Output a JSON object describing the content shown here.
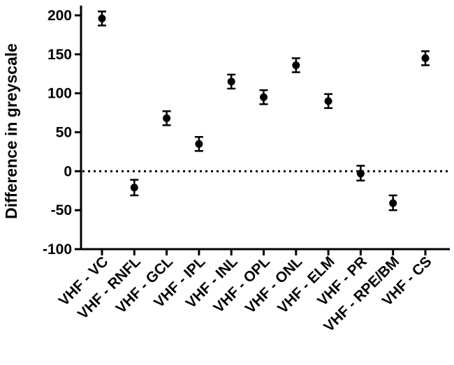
{
  "chart_data": {
    "type": "scatter",
    "title": "",
    "xlabel": "",
    "ylabel": "Difference in greyscale",
    "ylim": [
      -100,
      220
    ],
    "yticks": [
      200,
      150,
      100,
      50,
      0,
      -50,
      -100
    ],
    "reference_line": {
      "y": 0,
      "style": "dotted"
    },
    "grid": false,
    "legend": "none",
    "categories": [
      "VHF - VC",
      "VHF - RNFL",
      "VHF - GCL",
      "VHF - IPL",
      "VHF - INL",
      "VHF - OPL",
      "VHF - ONL",
      "VHF - ELM",
      "VHF - PR",
      "VHF - RPE/BM",
      "VHF - CS"
    ],
    "series": [
      {
        "values": [
          196,
          -21,
          68,
          35,
          115,
          95,
          136,
          90,
          -3,
          -41,
          145
        ],
        "error_low": [
          187,
          -31,
          59,
          26,
          106,
          86,
          127,
          81,
          -12,
          -50,
          136
        ],
        "error_high": [
          205,
          -11,
          77,
          44,
          124,
          104,
          145,
          99,
          7,
          -31,
          154
        ]
      }
    ],
    "colors": {
      "marker": "#000000",
      "axis": "#000000"
    }
  }
}
